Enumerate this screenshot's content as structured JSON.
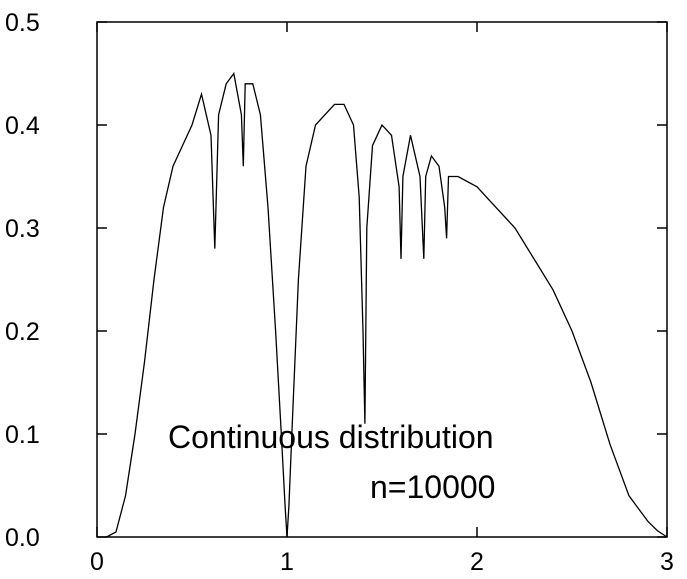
{
  "chart_data": {
    "type": "line",
    "title": "",
    "xlabel": "",
    "ylabel": "",
    "xlim": [
      0,
      3
    ],
    "ylim": [
      0,
      0.5
    ],
    "x_ticks": [
      "0",
      "1",
      "2",
      "3"
    ],
    "y_ticks": [
      "0.0",
      "0.1",
      "0.2",
      "0.3",
      "0.4",
      "0.5"
    ],
    "grid": false,
    "legend": "none",
    "line_color": "#000000",
    "annotations": [
      "Continuous distribution",
      "n=10000"
    ],
    "series": [
      {
        "x": [
          0.05,
          0.1,
          0.15,
          0.2,
          0.25,
          0.3,
          0.35,
          0.4,
          0.45,
          0.5,
          0.55,
          0.6,
          0.62,
          0.64,
          0.68,
          0.72,
          0.76,
          0.77,
          0.78,
          0.82,
          0.86,
          0.9,
          0.94,
          0.97,
          0.99,
          1.0,
          1.01,
          1.03,
          1.06,
          1.1,
          1.15,
          1.2,
          1.25,
          1.3,
          1.35,
          1.38,
          1.4,
          1.41,
          1.42,
          1.45,
          1.5,
          1.55,
          1.59,
          1.6,
          1.61,
          1.65,
          1.7,
          1.72,
          1.73,
          1.76,
          1.8,
          1.83,
          1.84,
          1.85,
          1.9,
          2.0,
          2.1,
          2.2,
          2.3,
          2.4,
          2.5,
          2.6,
          2.7,
          2.8,
          2.9,
          2.95,
          3.0
        ],
        "y": [
          0.0,
          0.005,
          0.04,
          0.1,
          0.17,
          0.25,
          0.32,
          0.36,
          0.38,
          0.4,
          0.43,
          0.39,
          0.28,
          0.41,
          0.44,
          0.45,
          0.41,
          0.36,
          0.44,
          0.44,
          0.41,
          0.32,
          0.2,
          0.1,
          0.03,
          0.0,
          0.03,
          0.12,
          0.25,
          0.36,
          0.4,
          0.41,
          0.42,
          0.42,
          0.4,
          0.33,
          0.2,
          0.11,
          0.3,
          0.38,
          0.4,
          0.39,
          0.34,
          0.27,
          0.35,
          0.39,
          0.35,
          0.27,
          0.35,
          0.37,
          0.36,
          0.32,
          0.29,
          0.35,
          0.35,
          0.34,
          0.32,
          0.3,
          0.27,
          0.24,
          0.2,
          0.15,
          0.09,
          0.04,
          0.015,
          0.006,
          0.0
        ]
      }
    ]
  }
}
